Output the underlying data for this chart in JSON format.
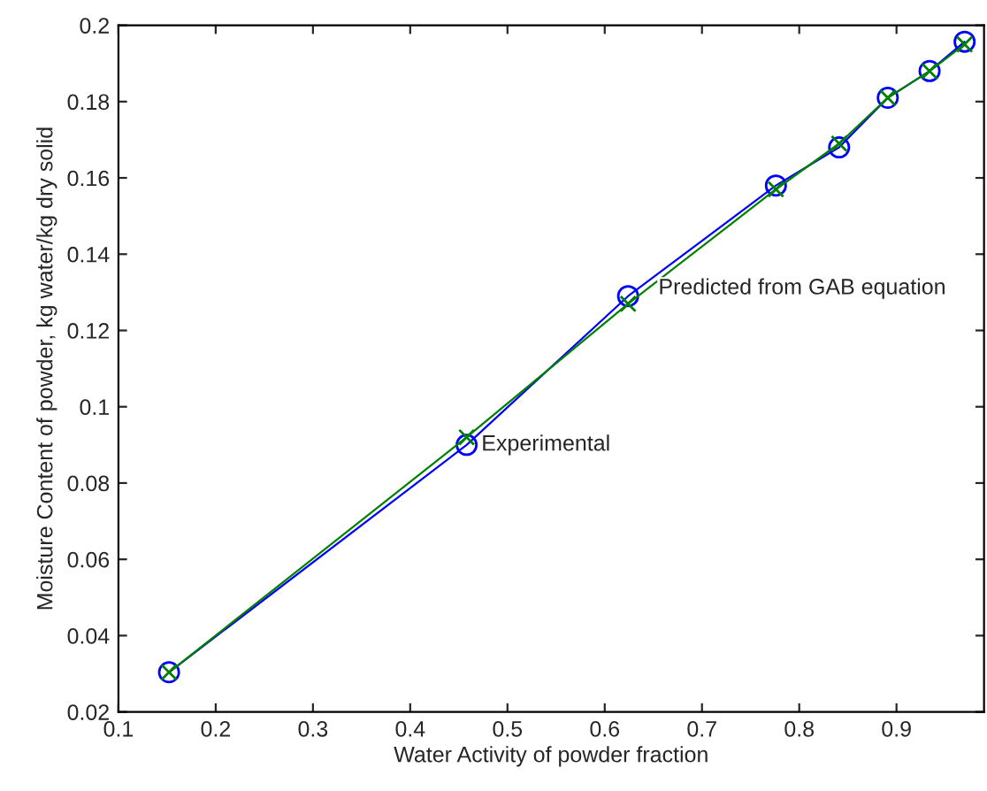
{
  "chart_data": {
    "type": "line",
    "xlabel": "Water Activity of powder fraction",
    "ylabel": "Moisture Content of powder, kg water/kg dry solid",
    "x": [
      0.152,
      0.458,
      0.624,
      0.776,
      0.841,
      0.891,
      0.934,
      0.97
    ],
    "series": [
      {
        "color": "#0000ff",
        "marker": "circle",
        "values": [
          0.0304,
          0.09,
          0.129,
          0.158,
          0.168,
          0.181,
          0.188,
          0.1957
        ]
      },
      {
        "color": "#008000",
        "marker": "cross",
        "values": [
          0.0304,
          0.092,
          0.127,
          0.157,
          0.169,
          0.181,
          0.188,
          0.195
        ]
      }
    ],
    "annotations": [
      {
        "text": "Experimental",
        "x": 0.458,
        "y": 0.09
      },
      {
        "text": "Predicted from GAB equation",
        "x": 0.64,
        "y": 0.131
      }
    ],
    "xlim": [
      0.1,
      0.99
    ],
    "xticks": [
      0.1,
      0.2,
      0.3,
      0.4,
      0.5,
      0.6,
      0.7,
      0.8,
      0.9
    ],
    "ylim": [
      0.02,
      0.2
    ],
    "yticks": [
      0.02,
      0.04,
      0.06,
      0.08,
      0.1,
      0.12,
      0.14,
      0.16,
      0.18,
      0.2
    ],
    "grid": false
  }
}
